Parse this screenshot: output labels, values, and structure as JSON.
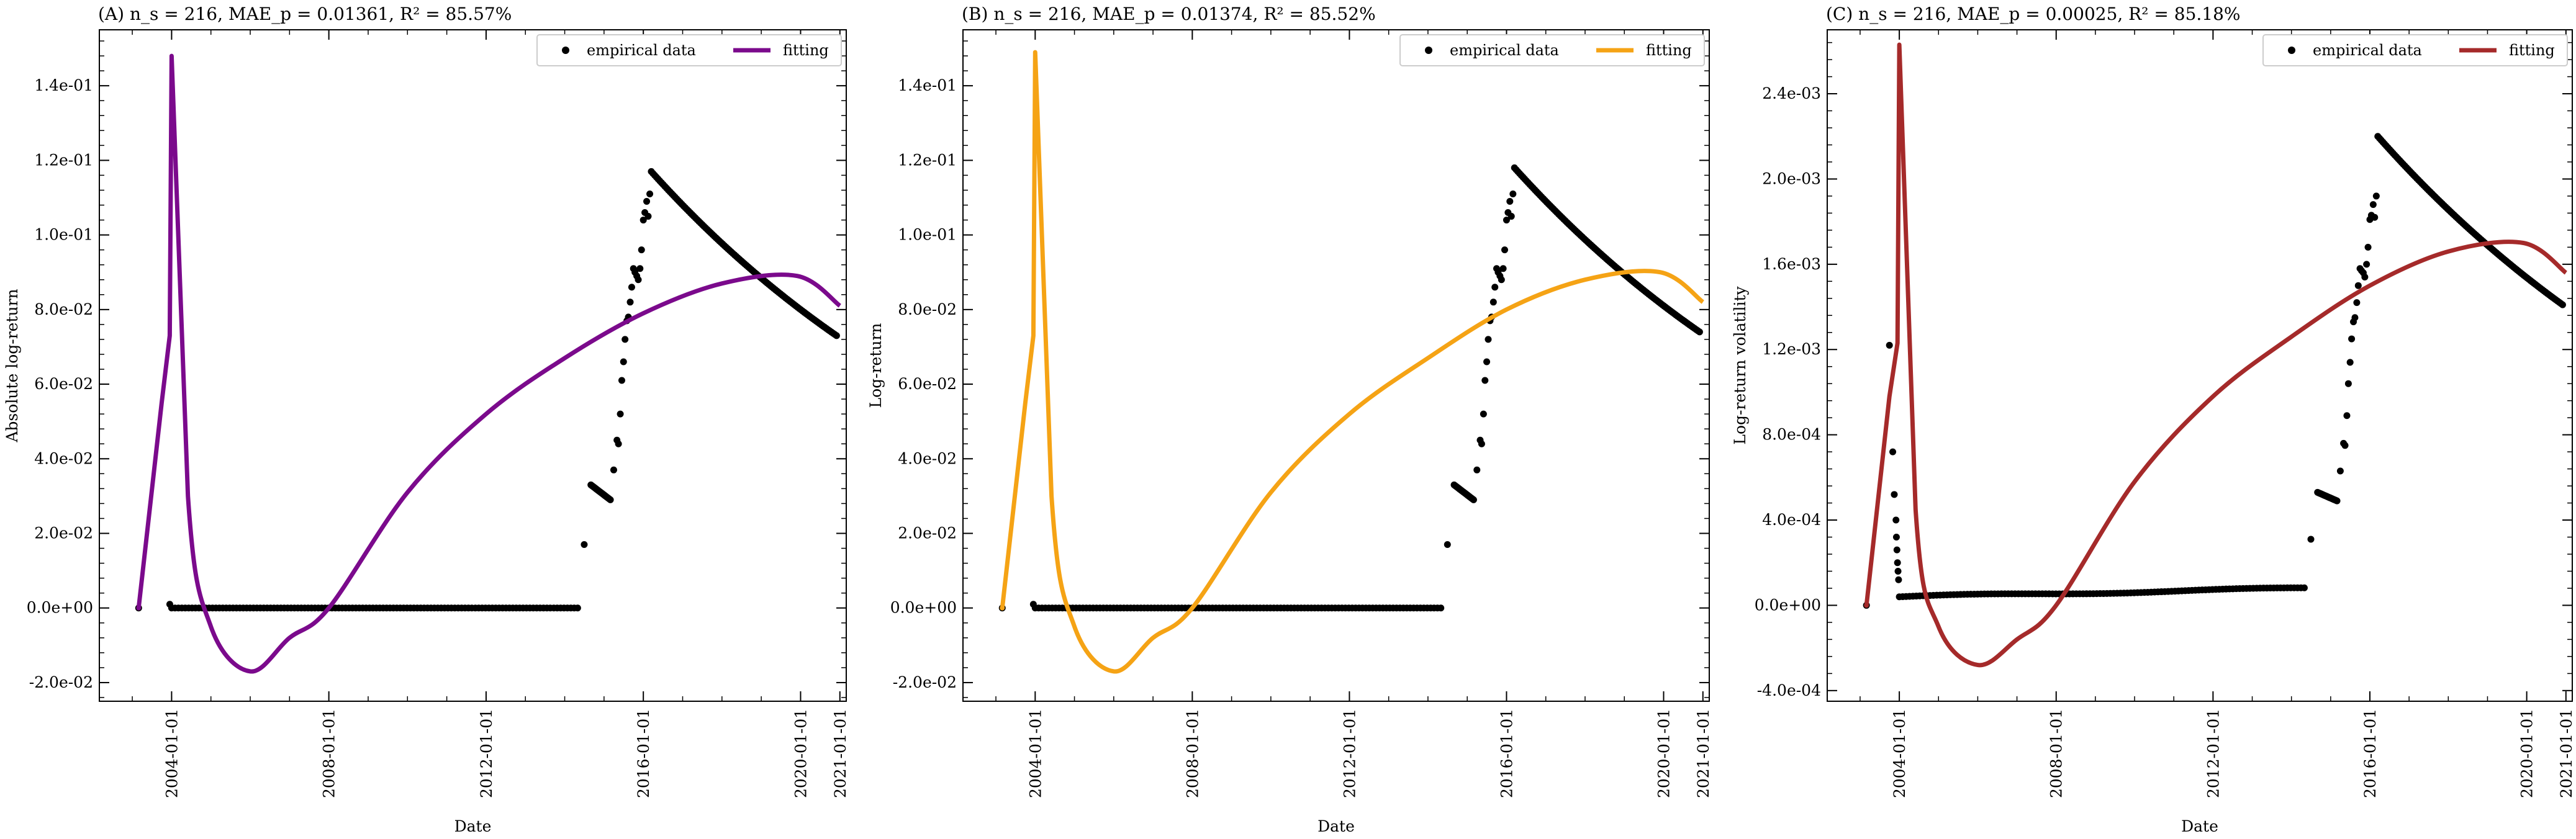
{
  "chart_data": [
    {
      "type": "line",
      "title": "(A) n_s = 216, MAE_p = 0.01361, R² = 85.57%",
      "xlabel": "Date",
      "ylabel": "Absolute log-return",
      "xlim": [
        "2002-03-01",
        "2021-03-01"
      ],
      "ylim": [
        -0.025,
        0.155
      ],
      "x_ticks": [
        "2004-01-01",
        "2008-01-01",
        "2012-01-01",
        "2016-01-01",
        "2020-01-01",
        "2021-01-01"
      ],
      "y_ticks": [
        -0.02,
        0.0,
        0.02,
        0.04,
        0.06,
        0.08,
        0.1,
        0.12,
        0.14
      ],
      "y_tick_labels": [
        "-2.0e-02",
        "0.0e+00",
        "2.0e-02",
        "4.0e-02",
        "6.0e-02",
        "8.0e-02",
        "1.0e-01",
        "1.2e-01",
        "1.4e-01"
      ],
      "legend": {
        "position": "top-right",
        "entries": [
          "empirical data",
          "fitting"
        ]
      },
      "series": [
        {
          "name": "empirical data",
          "kind": "scatter",
          "color": "#000000",
          "segments": [
            {
              "x": [
                "2003-03-01"
              ],
              "y": [
                0.0
              ]
            },
            {
              "x": [
                "2003-12-15"
              ],
              "y": [
                0.001
              ]
            },
            {
              "x_range": [
                "2004-01-01",
                "2014-05-01"
              ],
              "y": 0.0,
              "n": 120
            },
            {
              "x": [
                "2014-07-01"
              ],
              "y": [
                0.017
              ]
            },
            {
              "x_range": [
                "2014-09-01",
                "2015-03-01"
              ],
              "y_range": [
                0.033,
                0.029
              ],
              "n": 20
            },
            {
              "x": [
                "2015-04-01",
                "2015-05-01",
                "2015-05-15",
                "2015-06-01",
                "2015-06-15",
                "2015-07-01",
                "2015-07-15",
                "2015-08-01",
                "2015-08-15",
                "2015-09-01",
                "2015-09-15",
                "2015-10-01",
                "2015-10-15",
                "2015-11-01",
                "2015-11-15",
                "2015-12-01",
                "2015-12-15",
                "2016-01-01",
                "2016-01-15",
                "2016-02-01",
                "2016-02-15",
                "2016-03-01"
              ],
              "y": [
                0.037,
                0.045,
                0.044,
                0.052,
                0.061,
                0.066,
                0.072,
                0.077,
                0.078,
                0.082,
                0.086,
                0.091,
                0.09,
                0.089,
                0.088,
                0.091,
                0.096,
                0.104,
                0.106,
                0.109,
                0.105,
                0.111
              ]
            },
            {
              "x_range": [
                "2016-03-15",
                "2020-12-01"
              ],
              "y_decay": [
                0.117,
                0.073
              ],
              "n": 110
            }
          ]
        },
        {
          "name": "fitting",
          "kind": "line",
          "color": "#7b0a8c",
          "x": [
            "2003-03-01",
            "2003-10-01",
            "2003-12-15",
            "2004-01-01",
            "2004-06-01",
            "2005-01-01",
            "2006-01-01",
            "2007-01-01",
            "2008-01-01",
            "2010-01-01",
            "2012-01-01",
            "2014-01-01",
            "2016-01-01",
            "2018-01-01",
            "2019-12-01",
            "2021-01-01"
          ],
          "y": [
            0.0,
            0.055,
            0.073,
            0.148,
            0.03,
            -0.005,
            -0.017,
            -0.008,
            0.0,
            0.031,
            0.052,
            0.067,
            0.079,
            0.087,
            0.089,
            0.081
          ]
        }
      ]
    },
    {
      "type": "line",
      "title": "(B) n_s = 216, MAE_p = 0.01374, R² = 85.52%",
      "xlabel": "Date",
      "ylabel": "Log-return",
      "xlim": [
        "2002-03-01",
        "2021-03-01"
      ],
      "ylim": [
        -0.025,
        0.155
      ],
      "x_ticks": [
        "2004-01-01",
        "2008-01-01",
        "2012-01-01",
        "2016-01-01",
        "2020-01-01",
        "2021-01-01"
      ],
      "y_ticks": [
        -0.02,
        0.0,
        0.02,
        0.04,
        0.06,
        0.08,
        0.1,
        0.12,
        0.14
      ],
      "y_tick_labels": [
        "-2.0e-02",
        "0.0e+00",
        "2.0e-02",
        "4.0e-02",
        "6.0e-02",
        "8.0e-02",
        "1.0e-01",
        "1.2e-01",
        "1.4e-01"
      ],
      "legend": {
        "position": "top-right",
        "entries": [
          "empirical data",
          "fitting"
        ]
      },
      "series": [
        {
          "name": "empirical data",
          "kind": "scatter",
          "color": "#000000",
          "segments": [
            {
              "x": [
                "2003-03-01"
              ],
              "y": [
                0.0
              ]
            },
            {
              "x": [
                "2003-12-15"
              ],
              "y": [
                0.001
              ]
            },
            {
              "x_range": [
                "2004-01-01",
                "2014-05-01"
              ],
              "y": 0.0,
              "n": 120
            },
            {
              "x": [
                "2014-07-01"
              ],
              "y": [
                0.017
              ]
            },
            {
              "x_range": [
                "2014-09-01",
                "2015-03-01"
              ],
              "y_range": [
                0.033,
                0.029
              ],
              "n": 20
            },
            {
              "x": [
                "2015-04-01",
                "2015-05-01",
                "2015-05-15",
                "2015-06-01",
                "2015-06-15",
                "2015-07-01",
                "2015-07-15",
                "2015-08-01",
                "2015-08-15",
                "2015-09-01",
                "2015-09-15",
                "2015-10-01",
                "2015-10-15",
                "2015-11-01",
                "2015-11-15",
                "2015-12-01",
                "2015-12-15",
                "2016-01-01",
                "2016-01-15",
                "2016-02-01",
                "2016-02-15",
                "2016-03-01"
              ],
              "y": [
                0.037,
                0.045,
                0.044,
                0.052,
                0.061,
                0.066,
                0.072,
                0.077,
                0.078,
                0.082,
                0.086,
                0.091,
                0.09,
                0.089,
                0.088,
                0.091,
                0.096,
                0.104,
                0.106,
                0.109,
                0.105,
                0.111
              ]
            },
            {
              "x_range": [
                "2016-03-15",
                "2020-12-01"
              ],
              "y_decay": [
                0.118,
                0.074
              ],
              "n": 110
            }
          ]
        },
        {
          "name": "fitting",
          "kind": "line",
          "color": "#f5a315",
          "x": [
            "2003-03-01",
            "2003-10-01",
            "2003-12-15",
            "2004-01-01",
            "2004-06-01",
            "2005-01-01",
            "2006-01-01",
            "2007-01-01",
            "2008-01-01",
            "2010-01-01",
            "2012-01-01",
            "2014-01-01",
            "2016-01-01",
            "2018-01-01",
            "2019-12-01",
            "2021-01-01"
          ],
          "y": [
            0.0,
            0.055,
            0.073,
            0.149,
            0.03,
            -0.005,
            -0.017,
            -0.008,
            0.0,
            0.031,
            0.052,
            0.067,
            0.08,
            0.088,
            0.09,
            0.082
          ]
        }
      ]
    },
    {
      "type": "line",
      "title": "(C) n_s = 216, MAE_p = 0.00025, R² = 85.18%",
      "xlabel": "Date",
      "ylabel": "Log-return volatility",
      "xlim": [
        "2002-03-01",
        "2021-03-01"
      ],
      "ylim": [
        -0.00045,
        0.0027
      ],
      "x_ticks": [
        "2004-01-01",
        "2008-01-01",
        "2012-01-01",
        "2016-01-01",
        "2020-01-01",
        "2021-01-01"
      ],
      "y_ticks": [
        -0.0004,
        0.0,
        0.0004,
        0.0008,
        0.0012,
        0.0016,
        0.002,
        0.0024
      ],
      "y_tick_labels": [
        "-4.0e-04",
        "0.0e+00",
        "4.0e-04",
        "8.0e-04",
        "1.2e-03",
        "1.6e-03",
        "2.0e-03",
        "2.4e-03"
      ],
      "legend": {
        "position": "top-right",
        "entries": [
          "empirical data",
          "fitting"
        ]
      },
      "series": [
        {
          "name": "empirical data",
          "kind": "scatter",
          "color": "#000000",
          "segments": [
            {
              "x": [
                "2003-03-01",
                "2003-10-01",
                "2003-11-01",
                "2003-11-15",
                "2003-12-01",
                "2003-12-05",
                "2003-12-10",
                "2003-12-15",
                "2003-12-20",
                "2003-12-25"
              ],
              "y": [
                0.0,
                0.00122,
                0.00072,
                0.00052,
                0.0004,
                0.00032,
                0.00026,
                0.0002,
                0.00016,
                0.00012
              ]
            },
            {
              "x_range": [
                "2004-01-01",
                "2014-05-01"
              ],
              "y_baseline": "slow rise from 0.00004 to 0.00008",
              "n": 120
            },
            {
              "x": [
                "2014-07-01"
              ],
              "y": [
                0.00031
              ]
            },
            {
              "x_range": [
                "2014-09-01",
                "2015-03-01"
              ],
              "y_range": [
                0.00053,
                0.00049
              ],
              "n": 20
            },
            {
              "x": [
                "2015-04-01",
                "2015-05-01",
                "2015-05-15",
                "2015-06-01",
                "2015-06-15",
                "2015-07-01",
                "2015-07-15",
                "2015-08-01",
                "2015-08-15",
                "2015-09-01",
                "2015-09-15",
                "2015-10-01",
                "2015-10-15",
                "2015-11-01",
                "2015-11-15",
                "2015-12-01",
                "2015-12-15",
                "2016-01-01",
                "2016-01-15",
                "2016-02-01",
                "2016-02-15",
                "2016-03-01"
              ],
              "y": [
                0.00063,
                0.00076,
                0.00075,
                0.00089,
                0.00104,
                0.00114,
                0.00125,
                0.00133,
                0.00135,
                0.00142,
                0.0015,
                0.00158,
                0.00157,
                0.00156,
                0.00154,
                0.0016,
                0.00168,
                0.00181,
                0.00183,
                0.00188,
                0.00182,
                0.00192
              ]
            },
            {
              "x_range": [
                "2016-03-15",
                "2020-12-01"
              ],
              "y_decay": [
                0.0022,
                0.00141
              ],
              "n": 110
            }
          ]
        },
        {
          "name": "fitting",
          "kind": "line",
          "color": "#a52a2a",
          "x": [
            "2003-03-01",
            "2003-10-01",
            "2003-12-15",
            "2004-01-01",
            "2004-06-01",
            "2005-01-01",
            "2006-01-01",
            "2007-01-01",
            "2008-01-01",
            "2010-01-01",
            "2012-01-01",
            "2014-01-01",
            "2016-01-01",
            "2018-01-01",
            "2019-12-01",
            "2021-01-01"
          ],
          "y": [
            0.0,
            0.00098,
            0.00123,
            0.00263,
            0.00045,
            -0.0001,
            -0.00028,
            -0.00016,
            0.0,
            0.00058,
            0.00098,
            0.00126,
            0.0015,
            0.00166,
            0.0017,
            0.00156
          ]
        }
      ]
    }
  ]
}
